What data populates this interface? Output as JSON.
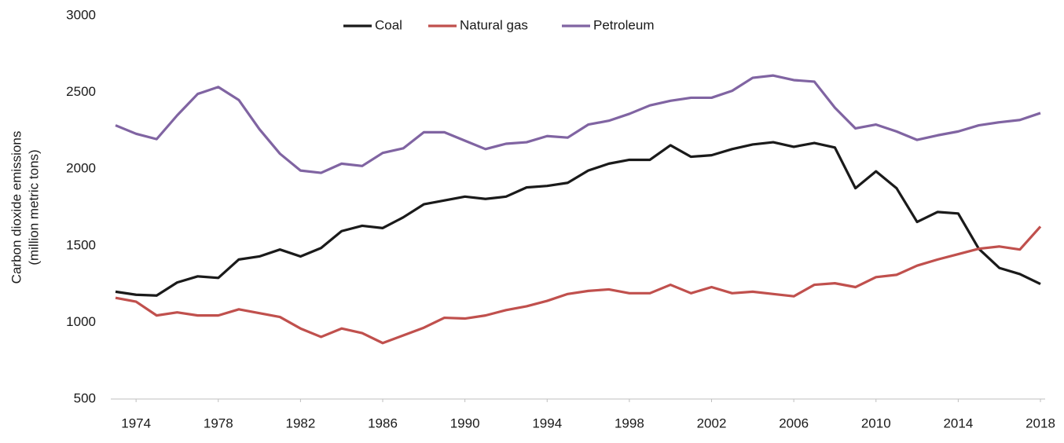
{
  "chart_data": {
    "type": "line",
    "ylabel": [
      "Carbon dioxide emissions",
      "(million metric tons)"
    ],
    "x": [
      1973,
      1974,
      1975,
      1976,
      1977,
      1978,
      1979,
      1980,
      1981,
      1982,
      1983,
      1984,
      1985,
      1986,
      1987,
      1988,
      1989,
      1990,
      1991,
      1992,
      1993,
      1994,
      1995,
      1996,
      1997,
      1998,
      1999,
      2000,
      2001,
      2002,
      2003,
      2004,
      2005,
      2006,
      2007,
      2008,
      2009,
      2010,
      2011,
      2012,
      2013,
      2014,
      2015,
      2016,
      2017,
      2018
    ],
    "series": [
      {
        "name": "Coal",
        "color": "#1a1a1a",
        "values": [
          1200,
          1180,
          1175,
          1260,
          1300,
          1290,
          1410,
          1430,
          1475,
          1430,
          1485,
          1595,
          1630,
          1615,
          1685,
          1770,
          1795,
          1820,
          1805,
          1820,
          1880,
          1890,
          1910,
          1990,
          2035,
          2060,
          2060,
          2155,
          2080,
          2090,
          2130,
          2160,
          2175,
          2145,
          2170,
          2140,
          1875,
          1985,
          1875,
          1655,
          1720,
          1710,
          1480,
          1355,
          1315,
          1250
        ]
      },
      {
        "name": "Natural gas",
        "color": "#c0504d",
        "values": [
          1160,
          1135,
          1045,
          1065,
          1045,
          1045,
          1085,
          1060,
          1035,
          960,
          905,
          960,
          930,
          865,
          915,
          965,
          1030,
          1025,
          1045,
          1080,
          1105,
          1140,
          1185,
          1205,
          1215,
          1190,
          1190,
          1245,
          1190,
          1230,
          1190,
          1200,
          1185,
          1170,
          1245,
          1255,
          1230,
          1295,
          1310,
          1370,
          1410,
          1445,
          1480,
          1495,
          1475,
          1625
        ]
      },
      {
        "name": "Petroleum",
        "color": "#8064a2",
        "values": [
          2285,
          2230,
          2195,
          2350,
          2490,
          2535,
          2450,
          2260,
          2100,
          1990,
          1975,
          2035,
          2020,
          2105,
          2135,
          2240,
          2240,
          2185,
          2130,
          2165,
          2175,
          2215,
          2205,
          2290,
          2315,
          2360,
          2415,
          2445,
          2465,
          2465,
          2510,
          2595,
          2610,
          2580,
          2570,
          2400,
          2265,
          2290,
          2245,
          2190,
          2220,
          2245,
          2285,
          2305,
          2320,
          2365
        ]
      }
    ],
    "xlim": [
      1973,
      2018
    ],
    "xticks": [
      1974,
      1978,
      1982,
      1986,
      1990,
      1994,
      1998,
      2002,
      2006,
      2010,
      2014,
      2018
    ],
    "ylim": [
      500,
      3000
    ],
    "yticks": [
      500,
      1000,
      1500,
      2000,
      2500,
      3000
    ],
    "grid": false,
    "legend": "top"
  }
}
